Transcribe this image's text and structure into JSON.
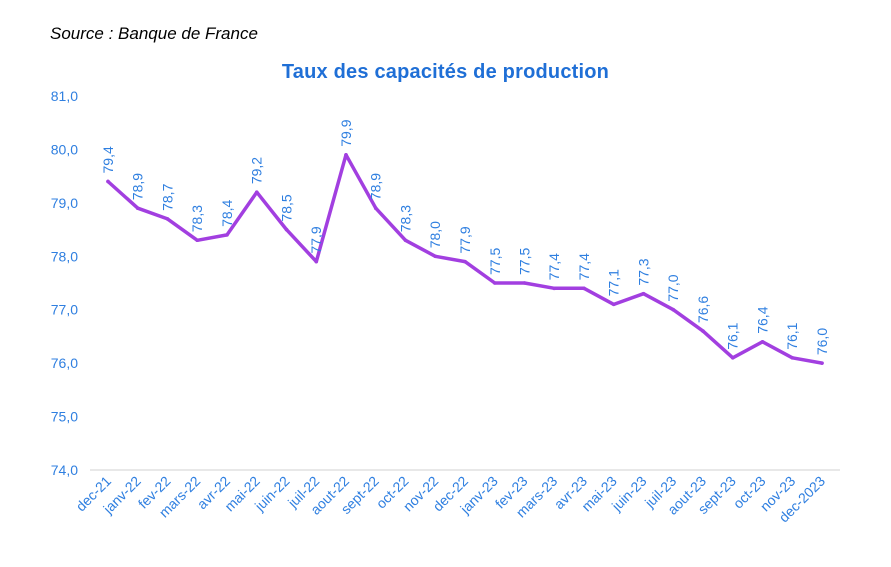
{
  "source_label": "Source : Banque de France",
  "colors": {
    "title": "#1f6fd6",
    "axis_text": "#2f7fe0",
    "line": "#a23fe0",
    "axis_line": "#d0d0d0"
  },
  "chart_data": {
    "type": "line",
    "title": "Taux des capacités de production",
    "xlabel": "",
    "ylabel": "",
    "ylim": [
      74.0,
      81.0
    ],
    "y_ticks": [
      "74,0",
      "75,0",
      "76,0",
      "77,0",
      "78,0",
      "79,0",
      "80,0",
      "81,0"
    ],
    "grid": false,
    "categories": [
      "dec-21",
      "janv-22",
      "fev-22",
      "mars-22",
      "avr-22",
      "mai-22",
      "juin-22",
      "juil-22",
      "aout-22",
      "sept-22",
      "oct-22",
      "nov-22",
      "dec-22",
      "janv-23",
      "fev-23",
      "mars-23",
      "avr-23",
      "mai-23",
      "juin-23",
      "juil-23",
      "aout-23",
      "sept-23",
      "oct-23",
      "nov-23",
      "dec-2023"
    ],
    "values": [
      79.4,
      78.9,
      78.7,
      78.3,
      78.4,
      79.2,
      78.5,
      77.9,
      79.9,
      78.9,
      78.3,
      78.0,
      77.9,
      77.5,
      77.5,
      77.4,
      77.4,
      77.1,
      77.3,
      77.0,
      76.6,
      76.1,
      76.4,
      76.1,
      76.0
    ],
    "data_labels": [
      "79,4",
      "78,9",
      "78,7",
      "78,3",
      "78,4",
      "79,2",
      "78,5",
      "77,9",
      "79,9",
      "78,9",
      "78,3",
      "78,0",
      "77,9",
      "77,5",
      "77,5",
      "77,4",
      "77,4",
      "77,1",
      "77,3",
      "77,0",
      "76,6",
      "76,1",
      "76,4",
      "76,1",
      "76,0"
    ]
  }
}
